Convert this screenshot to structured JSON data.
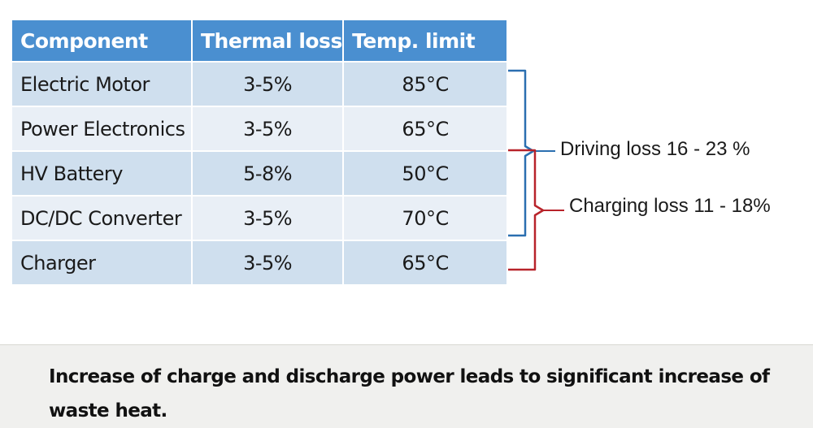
{
  "table": {
    "headers": {
      "component": "Component",
      "thermal_loss": "Thermal loss",
      "temp_limit": "Temp. limit"
    },
    "rows": [
      {
        "component": "Electric Motor",
        "thermal_loss": "3-5%",
        "temp_limit": "85°C"
      },
      {
        "component": "Power Electronics",
        "thermal_loss": "3-5%",
        "temp_limit": "65°C"
      },
      {
        "component": "HV Battery",
        "thermal_loss": "5-8%",
        "temp_limit": "50°C"
      },
      {
        "component": "DC/DC Converter",
        "thermal_loss": "3-5%",
        "temp_limit": "70°C"
      },
      {
        "component": "Charger",
        "thermal_loss": "3-5%",
        "temp_limit": "65°C"
      }
    ],
    "colors": {
      "header": "#4a8fd0",
      "row_odd": "#cfdfee",
      "row_even": "#e9eff6"
    }
  },
  "annotations": {
    "driving": "Driving loss 16 - 23 %",
    "charging": "Charging loss 11 - 18%",
    "driving_bracket_color": "#2b6fb0",
    "charging_bracket_color": "#b8232a"
  },
  "footer": {
    "text": "Increase of charge and discharge power leads to significant increase of waste heat."
  }
}
